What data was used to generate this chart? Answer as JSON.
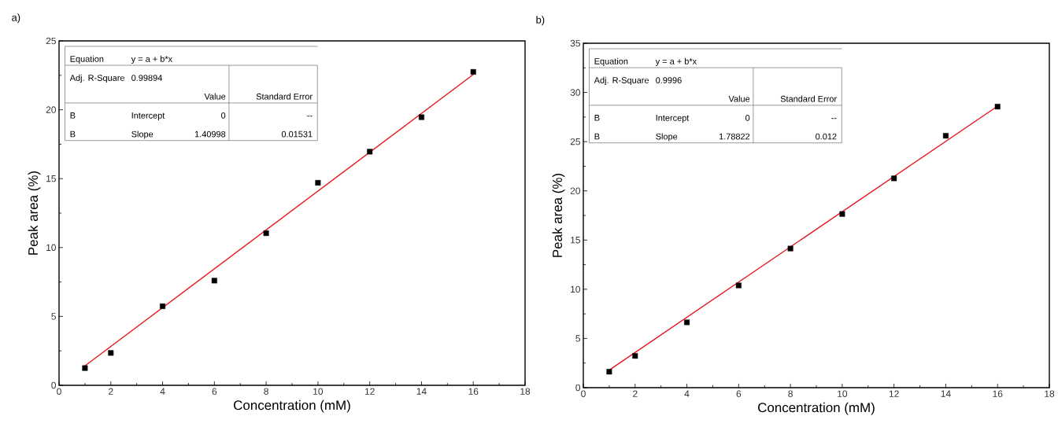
{
  "chart_data": [
    {
      "type": "scatter",
      "title": "a)",
      "xlabel": "Concentration (mM)",
      "ylabel": "Peak area (%)",
      "xlim": [
        0,
        18
      ],
      "xticks": [
        0,
        2,
        4,
        6,
        8,
        10,
        12,
        14,
        16,
        18
      ],
      "ylim": [
        0,
        25
      ],
      "yticks": [
        0,
        5,
        10,
        15,
        20,
        25
      ],
      "marker": "square",
      "annotations": [
        "Equation",
        "y = a + b*x",
        "Adj. R-Square",
        "0.99894",
        "Value",
        "Standard Error",
        "B",
        "Intercept",
        "0",
        "--",
        "B",
        "Slope",
        "1.40998",
        "0.01531"
      ],
      "series": [
        {
          "color": "#000000",
          "x": [
            1,
            2,
            4,
            6,
            8,
            10,
            12,
            14,
            16
          ],
          "values": [
            1.25,
            2.35,
            5.74,
            7.6,
            11.04,
            14.7,
            16.96,
            19.46,
            22.75
          ]
        },
        {
          "type": "line",
          "color": "#e8141b",
          "marker": "none",
          "x": [
            1,
            16
          ],
          "values": [
            1.41,
            22.56
          ]
        }
      ]
    },
    {
      "type": "scatter",
      "title": "b)",
      "xlabel": "Concentration (mM)",
      "ylabel": "Peak area (%)",
      "xlim": [
        0,
        18
      ],
      "xticks": [
        0,
        2,
        4,
        6,
        8,
        10,
        12,
        14,
        16,
        18
      ],
      "ylim": [
        0,
        35
      ],
      "yticks": [
        0,
        5,
        10,
        15,
        20,
        25,
        30,
        35
      ],
      "marker": "square",
      "annotations": [
        "Equation",
        "y = a + b*x",
        "Adj. R-Square",
        "0.9996",
        "Value",
        "Standard Error",
        "B",
        "Intercept",
        "0",
        "--",
        "B",
        "Slope",
        "1.78822",
        "0.012"
      ],
      "series": [
        {
          "color": "#000000",
          "x": [
            1,
            2,
            4,
            6,
            8,
            10,
            12,
            14,
            16
          ],
          "values": [
            1.62,
            3.23,
            6.64,
            10.39,
            14.14,
            17.65,
            21.27,
            25.6,
            28.56
          ]
        },
        {
          "type": "line",
          "color": "#e8141b",
          "marker": "none",
          "x": [
            1,
            16
          ],
          "values": [
            1.79,
            28.61
          ]
        }
      ]
    }
  ]
}
